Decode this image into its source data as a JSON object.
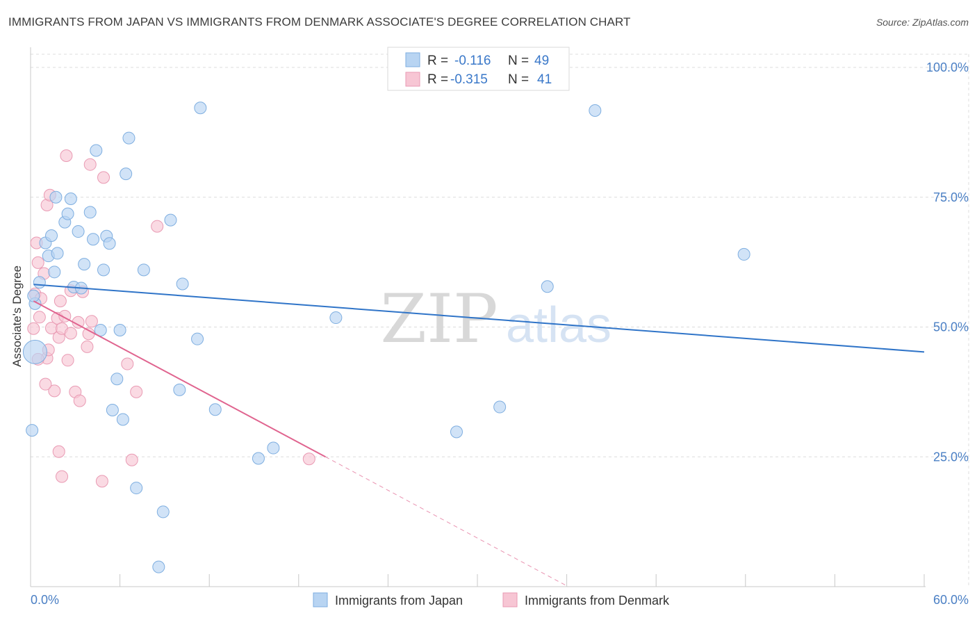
{
  "title": "IMMIGRANTS FROM JAPAN VS IMMIGRANTS FROM DENMARK ASSOCIATE'S DEGREE CORRELATION CHART",
  "source": "Source: ZipAtlas.com",
  "watermark": {
    "zip": "ZIP",
    "atlas": "atlas"
  },
  "legend_stats": [
    {
      "r_label": "R =",
      "r_value": "-0.116",
      "n_label": "N =",
      "n_value": "49"
    },
    {
      "r_label": "R =",
      "r_value": "-0.315",
      "n_label": "N =",
      "n_value": "41"
    }
  ],
  "colors": {
    "japan_fill": "#b8d4f2",
    "japan_stroke": "#7eaee0",
    "japan_line": "#2f74c8",
    "denmark_fill": "#f7c6d4",
    "denmark_stroke": "#e99ab3",
    "denmark_line": "#e0648f",
    "tick_label": "#4a7fc4",
    "grid": "#dcdcdc"
  },
  "chart_data": {
    "type": "scatter",
    "title": "IMMIGRANTS FROM JAPAN VS IMMIGRANTS FROM DENMARK ASSOCIATE'S DEGREE CORRELATION CHART",
    "xlabel": "",
    "ylabel": "Associate's Degree",
    "xlim": [
      0,
      60
    ],
    "ylim": [
      0,
      100
    ],
    "x_tick_labels": {
      "left": "0.0%",
      "right": "60.0%"
    },
    "y_ticks": [
      {
        "value": 100,
        "label": "100.0%"
      },
      {
        "value": 75,
        "label": "75.0%"
      },
      {
        "value": 50,
        "label": "50.0%"
      },
      {
        "value": 25,
        "label": "25.0%"
      }
    ],
    "legend": [
      "Immigrants from Japan",
      "Immigrants from Denmark"
    ],
    "series": [
      {
        "name": "Immigrants from Japan",
        "points": [
          [
            0.3,
            45.2
          ],
          [
            0.3,
            54.5
          ],
          [
            0.6,
            58.6
          ],
          [
            1.0,
            66.2
          ],
          [
            1.2,
            63.7
          ],
          [
            1.4,
            67.6
          ],
          [
            1.6,
            60.6
          ],
          [
            1.7,
            75.0
          ],
          [
            1.8,
            64.2
          ],
          [
            2.3,
            70.2
          ],
          [
            2.5,
            71.8
          ],
          [
            2.7,
            74.7
          ],
          [
            2.9,
            57.7
          ],
          [
            3.2,
            68.4
          ],
          [
            3.6,
            62.1
          ],
          [
            4.0,
            72.1
          ],
          [
            4.2,
            66.9
          ],
          [
            4.4,
            84.0
          ],
          [
            4.7,
            49.4
          ],
          [
            4.9,
            61.0
          ],
          [
            5.1,
            67.5
          ],
          [
            5.3,
            66.1
          ],
          [
            5.5,
            34.0
          ],
          [
            5.8,
            40.0
          ],
          [
            6.0,
            49.4
          ],
          [
            6.2,
            32.2
          ],
          [
            6.4,
            79.5
          ],
          [
            6.6,
            86.4
          ],
          [
            7.1,
            19.0
          ],
          [
            7.6,
            61.0
          ],
          [
            8.6,
            3.8
          ],
          [
            8.9,
            14.4
          ],
          [
            9.4,
            70.6
          ],
          [
            10.0,
            37.9
          ],
          [
            10.2,
            58.3
          ],
          [
            11.2,
            47.7
          ],
          [
            11.4,
            92.2
          ],
          [
            12.4,
            34.1
          ],
          [
            15.3,
            24.7
          ],
          [
            16.3,
            26.7
          ],
          [
            20.5,
            51.8
          ],
          [
            28.6,
            29.8
          ],
          [
            31.5,
            34.6
          ],
          [
            34.7,
            57.8
          ],
          [
            37.9,
            91.7
          ],
          [
            47.9,
            64.0
          ],
          [
            0.1,
            30.1
          ],
          [
            0.2,
            56.0
          ],
          [
            3.4,
            57.5
          ]
        ],
        "trend": {
          "x0": 0.2,
          "y0": 58.2,
          "x1": 60.0,
          "y1": 45.2
        }
      },
      {
        "name": "Immigrants from Denmark",
        "points": [
          [
            0.2,
            49.7
          ],
          [
            0.3,
            56.4
          ],
          [
            0.4,
            66.2
          ],
          [
            0.5,
            62.4
          ],
          [
            0.6,
            51.9
          ],
          [
            0.7,
            55.5
          ],
          [
            0.9,
            60.3
          ],
          [
            1.1,
            44.0
          ],
          [
            1.1,
            73.5
          ],
          [
            1.2,
            45.6
          ],
          [
            1.3,
            75.4
          ],
          [
            1.4,
            49.8
          ],
          [
            1.6,
            37.7
          ],
          [
            1.8,
            51.7
          ],
          [
            1.9,
            48.0
          ],
          [
            1.9,
            26.0
          ],
          [
            2.1,
            49.7
          ],
          [
            2.1,
            21.2
          ],
          [
            2.3,
            52.1
          ],
          [
            2.4,
            83.0
          ],
          [
            2.5,
            43.6
          ],
          [
            2.7,
            48.8
          ],
          [
            2.7,
            57.0
          ],
          [
            3.0,
            37.5
          ],
          [
            3.3,
            35.8
          ],
          [
            3.5,
            56.8
          ],
          [
            3.8,
            46.2
          ],
          [
            3.9,
            48.7
          ],
          [
            4.0,
            81.3
          ],
          [
            4.1,
            51.1
          ],
          [
            4.8,
            20.3
          ],
          [
            4.9,
            78.8
          ],
          [
            6.5,
            42.9
          ],
          [
            6.8,
            24.4
          ],
          [
            7.1,
            37.5
          ],
          [
            8.5,
            69.4
          ],
          [
            18.7,
            24.6
          ],
          [
            0.5,
            43.8
          ],
          [
            1.0,
            39.0
          ],
          [
            3.2,
            50.9
          ],
          [
            2.0,
            55.0
          ]
        ],
        "trend_solid": {
          "x0": 0.2,
          "y0": 55.0,
          "x1": 19.8,
          "y1": 25.0
        },
        "trend_dashed": {
          "x0": 19.8,
          "y0": 25.0,
          "x1": 36.1,
          "y1": 0.0
        }
      }
    ]
  }
}
